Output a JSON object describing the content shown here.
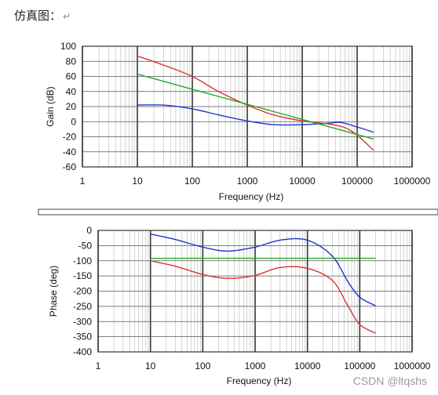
{
  "caption": {
    "text": "仿真图：",
    "return_mark": "↵"
  },
  "watermark": "CSDN @ltqshs",
  "colors": {
    "blue": "#2233cc",
    "red": "#dd3333",
    "green": "#22aa22",
    "grid": "#b8b8b8",
    "plot_bg": "#ffffff"
  },
  "chart_data": [
    {
      "type": "line",
      "title": "",
      "xlabel": "Frequency (Hz)",
      "ylabel": "Gain (dB)",
      "xscale": "log",
      "xlim": [
        1,
        1000000
      ],
      "ylim": [
        -60,
        100
      ],
      "x_tick_labels": [
        "1",
        "10",
        "100",
        "1000",
        "10000",
        "100000",
        "1000000"
      ],
      "y_tick_labels": [
        "100",
        "80",
        "60",
        "40",
        "20",
        "0",
        "-20",
        "-40",
        "-60"
      ],
      "grid": true,
      "series": [
        {
          "color": "blue",
          "x": [
            10,
            30,
            100,
            300,
            1000,
            3000,
            10000,
            30000,
            50000,
            100000,
            200000
          ],
          "y": [
            22,
            22,
            17,
            9,
            1,
            -4,
            -4,
            -2,
            -1,
            -7,
            -14
          ]
        },
        {
          "color": "red",
          "x": [
            10,
            30,
            100,
            300,
            1000,
            3000,
            10000,
            30000,
            60000,
            100000,
            200000
          ],
          "y": [
            87,
            75,
            60,
            40,
            22,
            9,
            1,
            -3,
            -8,
            -18,
            -38
          ]
        },
        {
          "color": "green",
          "x": [
            10,
            100,
            1000,
            10000,
            100000,
            200000
          ],
          "y": [
            63,
            43,
            23,
            3,
            -17,
            -23
          ]
        }
      ]
    },
    {
      "type": "line",
      "title": "",
      "xlabel": "Frequency (Hz)",
      "ylabel": "Phase (deg)",
      "xscale": "log",
      "xlim": [
        1,
        1000000
      ],
      "ylim": [
        -400,
        0
      ],
      "x_tick_labels": [
        "1",
        "10",
        "100",
        "1000",
        "10000",
        "100000",
        "1000000"
      ],
      "y_tick_labels": [
        "0",
        "-50",
        "-100",
        "-150",
        "-200",
        "-250",
        "-300",
        "-350",
        "-400"
      ],
      "grid": true,
      "series": [
        {
          "color": "blue",
          "x": [
            10,
            30,
            100,
            300,
            1000,
            3000,
            10000,
            30000,
            60000,
            100000,
            200000
          ],
          "y": [
            -12,
            -30,
            -55,
            -68,
            -55,
            -32,
            -32,
            -85,
            -170,
            -220,
            -248
          ]
        },
        {
          "color": "red",
          "x": [
            10,
            30,
            100,
            300,
            1000,
            3000,
            10000,
            30000,
            60000,
            100000,
            200000
          ],
          "y": [
            -100,
            -118,
            -145,
            -158,
            -148,
            -122,
            -125,
            -165,
            -250,
            -310,
            -338
          ]
        },
        {
          "color": "green",
          "x": [
            10,
            100,
            1000,
            10000,
            100000,
            200000
          ],
          "y": [
            -92,
            -92,
            -92,
            -92,
            -92,
            -92
          ]
        }
      ]
    }
  ]
}
